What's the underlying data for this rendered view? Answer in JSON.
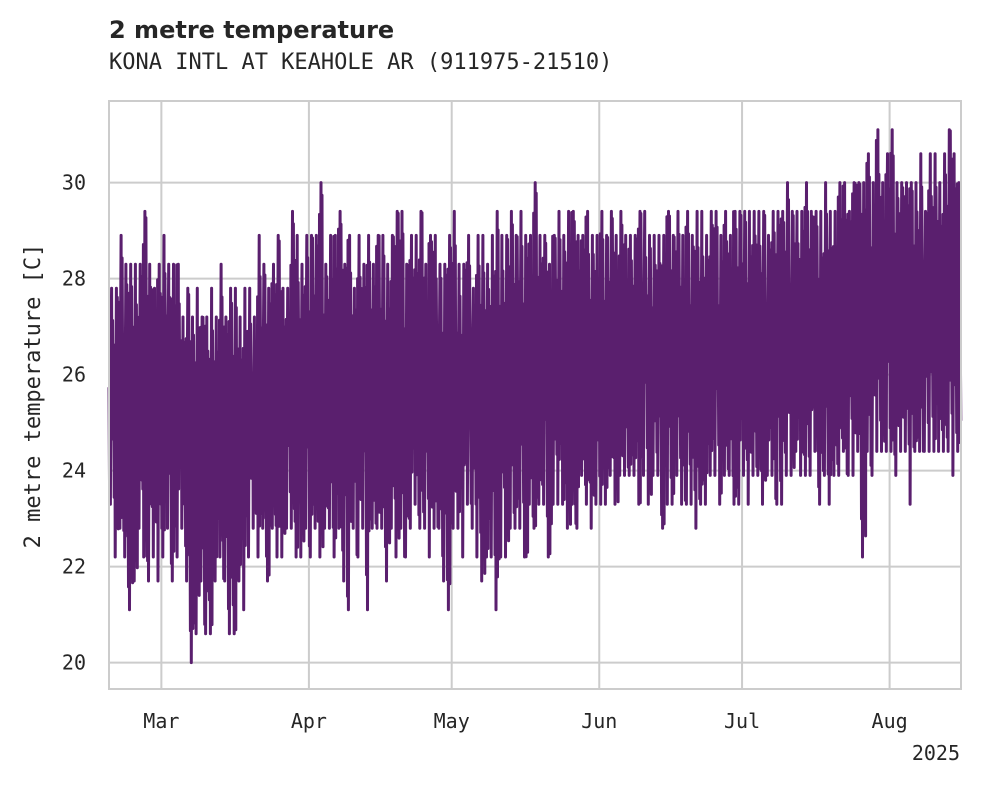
{
  "chart_data": {
    "type": "line",
    "title": "2 metre temperature",
    "subtitle": "KONA INTL AT KEAHOLE AR (911975-21510)",
    "ylabel": "2 metre temperature [C]",
    "xlabel": "",
    "x_tick_labels": [
      "Mar",
      "Apr",
      "May",
      "Jun",
      "Jul",
      "Aug"
    ],
    "x_tick_dates": [
      "2025-03-01",
      "2025-04-01",
      "2025-05-01",
      "2025-06-01",
      "2025-07-01",
      "2025-08-01"
    ],
    "x_offset_label": "2025",
    "y_ticks": [
      20,
      22,
      24,
      26,
      28,
      30
    ],
    "xlim": [
      "2025-02-18",
      "2025-08-16"
    ],
    "ylim": [
      19.45,
      31.7
    ],
    "grid": true,
    "series_color": "#5a1f6e",
    "series": [
      {
        "name": "",
        "x_start": "2025-02-18",
        "x_end": "2025-08-15",
        "frequency": "hourly",
        "daily_min_max": [
          [
            23.3,
            27.8
          ],
          [
            22.2,
            27.8
          ],
          [
            22.8,
            28.9
          ],
          [
            22.2,
            28.3
          ],
          [
            21.1,
            28.3
          ],
          [
            21.7,
            28.3
          ],
          [
            22.8,
            28.3
          ],
          [
            22.2,
            29.4
          ],
          [
            21.7,
            28.3
          ],
          [
            22.2,
            27.8
          ],
          [
            21.7,
            28.3
          ],
          [
            22.2,
            28.9
          ],
          [
            22.8,
            28.3
          ],
          [
            21.7,
            28.3
          ],
          [
            22.2,
            28.3
          ],
          [
            22.8,
            27.2
          ],
          [
            21.7,
            27.8
          ],
          [
            20.0,
            27.2
          ],
          [
            20.6,
            27.8
          ],
          [
            21.7,
            27.2
          ],
          [
            20.6,
            27.2
          ],
          [
            20.6,
            27.8
          ],
          [
            21.7,
            27.2
          ],
          [
            22.2,
            28.3
          ],
          [
            21.7,
            27.2
          ],
          [
            20.6,
            27.8
          ],
          [
            20.6,
            27.8
          ],
          [
            21.7,
            27.2
          ],
          [
            21.1,
            27.8
          ],
          [
            22.2,
            27.8
          ],
          [
            22.8,
            27.2
          ],
          [
            22.2,
            28.9
          ],
          [
            22.8,
            28.3
          ],
          [
            21.7,
            27.8
          ],
          [
            22.8,
            28.3
          ],
          [
            22.2,
            28.9
          ],
          [
            22.2,
            27.8
          ],
          [
            22.8,
            27.8
          ],
          [
            22.8,
            29.4
          ],
          [
            22.2,
            28.9
          ],
          [
            22.2,
            28.3
          ],
          [
            22.8,
            28.9
          ],
          [
            22.2,
            28.9
          ],
          [
            22.8,
            28.9
          ],
          [
            22.2,
            30.0
          ],
          [
            22.8,
            28.3
          ],
          [
            22.8,
            28.9
          ],
          [
            22.2,
            28.9
          ],
          [
            22.8,
            29.4
          ],
          [
            21.7,
            28.3
          ],
          [
            21.1,
            28.9
          ],
          [
            22.8,
            27.8
          ],
          [
            22.2,
            28.9
          ],
          [
            22.8,
            28.3
          ],
          [
            21.1,
            28.9
          ],
          [
            22.8,
            28.3
          ],
          [
            22.8,
            28.9
          ],
          [
            22.8,
            28.9
          ],
          [
            21.7,
            28.3
          ],
          [
            22.8,
            28.9
          ],
          [
            22.2,
            29.4
          ],
          [
            22.8,
            29.4
          ],
          [
            22.2,
            28.3
          ],
          [
            22.8,
            28.9
          ],
          [
            23.3,
            28.9
          ],
          [
            22.8,
            29.4
          ],
          [
            22.8,
            28.3
          ],
          [
            22.2,
            28.9
          ],
          [
            22.8,
            28.9
          ],
          [
            22.8,
            28.3
          ],
          [
            21.7,
            28.3
          ],
          [
            21.1,
            28.9
          ],
          [
            22.8,
            29.4
          ],
          [
            22.8,
            28.3
          ],
          [
            22.2,
            28.3
          ],
          [
            23.3,
            28.9
          ],
          [
            22.8,
            27.8
          ],
          [
            22.2,
            28.9
          ],
          [
            21.7,
            28.9
          ],
          [
            22.2,
            28.3
          ],
          [
            22.2,
            28.9
          ],
          [
            21.1,
            29.4
          ],
          [
            22.2,
            28.9
          ],
          [
            22.2,
            28.9
          ],
          [
            22.8,
            29.4
          ],
          [
            22.8,
            28.9
          ],
          [
            22.8,
            29.4
          ],
          [
            22.2,
            28.9
          ],
          [
            23.3,
            28.9
          ],
          [
            22.8,
            30.0
          ],
          [
            23.3,
            28.9
          ],
          [
            23.3,
            28.9
          ],
          [
            22.2,
            28.3
          ],
          [
            23.3,
            28.9
          ],
          [
            23.3,
            29.4
          ],
          [
            23.3,
            28.9
          ],
          [
            22.8,
            29.4
          ],
          [
            23.3,
            29.4
          ],
          [
            22.8,
            28.9
          ],
          [
            23.9,
            28.9
          ],
          [
            23.3,
            29.4
          ],
          [
            22.8,
            28.9
          ],
          [
            23.3,
            28.9
          ],
          [
            23.3,
            29.4
          ],
          [
            23.3,
            28.9
          ],
          [
            23.9,
            29.4
          ],
          [
            23.3,
            28.9
          ],
          [
            23.9,
            29.4
          ],
          [
            23.9,
            28.9
          ],
          [
            23.9,
            28.9
          ],
          [
            23.9,
            28.9
          ],
          [
            23.3,
            29.4
          ],
          [
            23.9,
            29.4
          ],
          [
            23.3,
            28.9
          ],
          [
            23.9,
            28.9
          ],
          [
            23.9,
            28.9
          ],
          [
            22.8,
            28.9
          ],
          [
            23.3,
            29.4
          ],
          [
            23.3,
            28.9
          ],
          [
            23.9,
            29.4
          ],
          [
            23.3,
            28.9
          ],
          [
            23.3,
            29.4
          ],
          [
            23.3,
            28.9
          ],
          [
            22.8,
            29.4
          ],
          [
            23.3,
            29.4
          ],
          [
            23.3,
            28.9
          ],
          [
            23.9,
            29.4
          ],
          [
            23.9,
            29.4
          ],
          [
            23.3,
            28.9
          ],
          [
            23.9,
            29.4
          ],
          [
            23.9,
            28.9
          ],
          [
            23.3,
            29.4
          ],
          [
            23.3,
            29.4
          ],
          [
            23.9,
            29.4
          ],
          [
            23.3,
            29.4
          ],
          [
            23.9,
            29.4
          ],
          [
            23.9,
            29.4
          ],
          [
            23.3,
            29.4
          ],
          [
            23.9,
            28.9
          ],
          [
            23.9,
            29.4
          ],
          [
            23.3,
            29.4
          ],
          [
            23.3,
            29.4
          ],
          [
            23.9,
            30.0
          ],
          [
            23.9,
            29.4
          ],
          [
            24.4,
            29.4
          ],
          [
            23.9,
            29.4
          ],
          [
            23.9,
            30.0
          ],
          [
            23.9,
            29.4
          ],
          [
            24.4,
            29.4
          ],
          [
            23.3,
            29.4
          ],
          [
            23.9,
            30.0
          ],
          [
            23.3,
            29.4
          ],
          [
            23.9,
            29.4
          ],
          [
            23.9,
            30.0
          ],
          [
            24.4,
            30.0
          ],
          [
            23.9,
            29.4
          ],
          [
            23.9,
            30.0
          ],
          [
            24.4,
            30.0
          ],
          [
            22.2,
            30.0
          ],
          [
            24.4,
            30.6
          ],
          [
            23.9,
            30.0
          ],
          [
            24.4,
            31.1
          ],
          [
            24.4,
            30.0
          ],
          [
            24.4,
            30.6
          ],
          [
            24.4,
            31.1
          ],
          [
            23.9,
            30.0
          ],
          [
            24.4,
            30.0
          ],
          [
            24.4,
            30.0
          ],
          [
            23.3,
            30.0
          ],
          [
            24.4,
            30.0
          ],
          [
            24.4,
            30.6
          ],
          [
            24.4,
            29.4
          ],
          [
            24.4,
            30.6
          ],
          [
            24.4,
            30.6
          ],
          [
            24.4,
            30.0
          ],
          [
            24.4,
            30.6
          ],
          [
            24.4,
            31.1
          ],
          [
            23.9,
            30.6
          ],
          [
            24.4,
            30.0
          ]
        ]
      }
    ]
  }
}
